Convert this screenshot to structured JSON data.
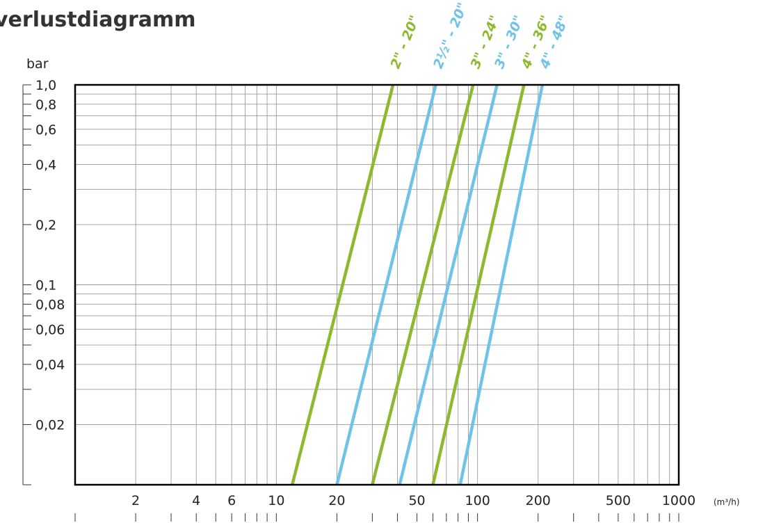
{
  "chart_data": {
    "type": "line",
    "title": "verlustdiagramm",
    "ylabel": "bar",
    "xlabel": "(m³/h)",
    "x_scale": "log",
    "y_scale": "log",
    "xlim": [
      1,
      1000
    ],
    "ylim": [
      0.01,
      1.0
    ],
    "grid": true,
    "legend": "labels-at-line-tops",
    "x_ticks": [
      {
        "value": 2,
        "label": "2"
      },
      {
        "value": 4,
        "label": "4"
      },
      {
        "value": 6,
        "label": "6"
      },
      {
        "value": 10,
        "label": "10"
      },
      {
        "value": 20,
        "label": "20"
      },
      {
        "value": 50,
        "label": "50"
      },
      {
        "value": 100,
        "label": "100"
      },
      {
        "value": 200,
        "label": "200"
      },
      {
        "value": 500,
        "label": "500"
      },
      {
        "value": 1000,
        "label": "1000"
      }
    ],
    "y_ticks": [
      {
        "value": 1.0,
        "label": "1,0"
      },
      {
        "value": 0.8,
        "label": "0,8"
      },
      {
        "value": 0.6,
        "label": "0,6"
      },
      {
        "value": 0.4,
        "label": "0,4"
      },
      {
        "value": 0.2,
        "label": "0,2"
      },
      {
        "value": 0.1,
        "label": "0,1"
      },
      {
        "value": 0.08,
        "label": "0,08"
      },
      {
        "value": 0.06,
        "label": "0,06"
      },
      {
        "value": 0.04,
        "label": "0,04"
      },
      {
        "value": 0.02,
        "label": "0,02"
      }
    ],
    "colors": {
      "green": "#8db92e",
      "blue": "#6fc3e8",
      "grid": "#9a9a9a",
      "axis": "#000000"
    },
    "series": [
      {
        "name": "2\" - 20\"",
        "color": "#8db92e",
        "x": [
          12.0,
          38.0
        ],
        "y": [
          0.01,
          1.0
        ]
      },
      {
        "name": "2½\" - 20\"",
        "color": "#6fc3e8",
        "x": [
          20.0,
          62.0
        ],
        "y": [
          0.01,
          1.0
        ]
      },
      {
        "name": "3\" - 24\"",
        "color": "#8db92e",
        "x": [
          30.0,
          95.0
        ],
        "y": [
          0.01,
          1.0
        ]
      },
      {
        "name": "3\" - 30\"",
        "color": "#6fc3e8",
        "x": [
          41.0,
          125.0
        ],
        "y": [
          0.01,
          1.0
        ]
      },
      {
        "name": "4\" - 36\"",
        "color": "#8db92e",
        "x": [
          60.0,
          170.0
        ],
        "y": [
          0.01,
          1.0
        ]
      },
      {
        "name": "4\" - 48\"",
        "color": "#6fc3e8",
        "x": [
          82.0,
          210.0
        ],
        "y": [
          0.01,
          1.0
        ]
      }
    ]
  }
}
